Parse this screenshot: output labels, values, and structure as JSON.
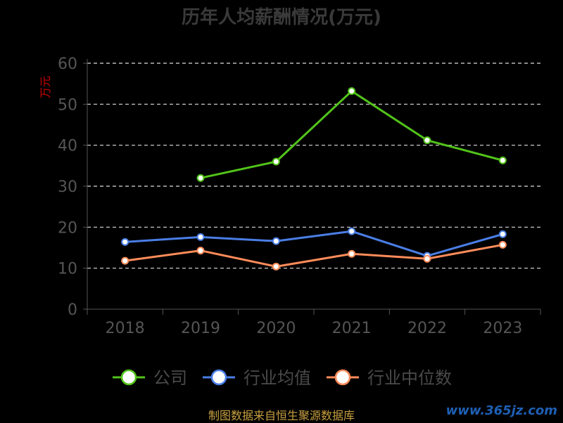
{
  "colors": {
    "company": "#52c41a",
    "industry_avg": "#4a7ee6",
    "industry_median": "#ff8c5a",
    "axis": "#555555",
    "grid": "#dddddd",
    "tick_text": "#555555",
    "ylabel": "#cc0000"
  },
  "chart_data": {
    "type": "line",
    "title": "历年人均薪酬情况(万元)",
    "xlabel": "",
    "ylabel": "万元",
    "categories": [
      "2018",
      "2019",
      "2020",
      "2021",
      "2022",
      "2023"
    ],
    "ylim": [
      0,
      60
    ],
    "yticks": [
      0,
      10,
      20,
      30,
      40,
      50,
      60
    ],
    "grid": true,
    "legend_position": "bottom",
    "series": [
      {
        "name": "公司",
        "values": [
          null,
          32.0,
          36.0,
          53.2,
          41.2,
          36.3
        ],
        "color_key": "company"
      },
      {
        "name": "行业均值",
        "values": [
          16.4,
          17.6,
          16.6,
          19.0,
          13.0,
          18.3
        ],
        "color_key": "industry_avg"
      },
      {
        "name": "行业中位数",
        "values": [
          11.8,
          14.3,
          10.4,
          13.5,
          12.3,
          15.7
        ],
        "color_key": "industry_median"
      }
    ]
  },
  "footer": {
    "source": "制图数据来自恒生聚源数据库",
    "watermark": "www.365jz.com"
  }
}
